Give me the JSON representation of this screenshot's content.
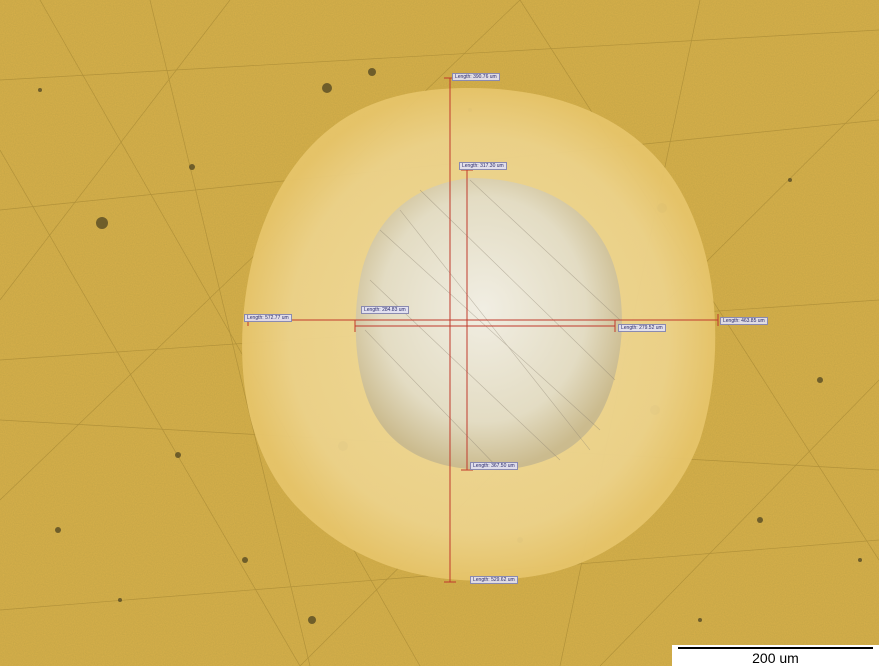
{
  "image": {
    "description_colors": {
      "substrate": "#d8b04a",
      "halo": "#ecd38a",
      "crater": "#e9e4d0",
      "measure_line": "#c0392b"
    }
  },
  "measurements": {
    "v_outer_top": "Length: 390.76 um",
    "v_inner_top": "Length: 317.30 um",
    "h_outer_left": "Length: 572.77 um",
    "h_inner_left": "Length: 284.83 um",
    "h_inner_right": "Length: 279.52 um",
    "h_outer_right": "Length: 463.85 um",
    "v_inner_bottom": "Length: 367.50 um",
    "v_outer_bottom": "Length: 529.62 um"
  },
  "scalebar": {
    "label": "200 um"
  }
}
